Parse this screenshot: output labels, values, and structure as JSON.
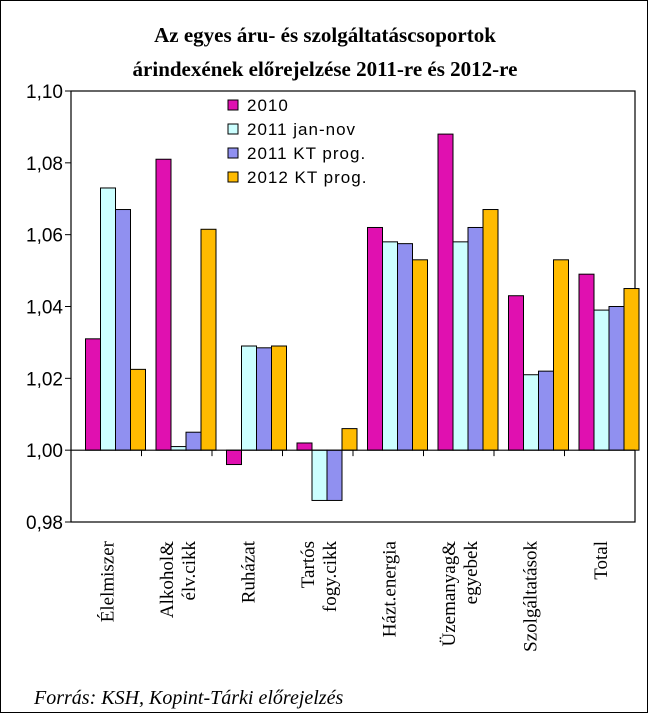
{
  "chart_data": {
    "type": "bar",
    "title_lines": [
      "Az egyes áru- és szolgáltatáscsoportok",
      "árindexének előrejelzése 2011-re és 2012-re"
    ],
    "categories": [
      [
        "Élelmiszer"
      ],
      [
        "Alkohol&",
        "élv.cikk"
      ],
      [
        "Ruházat"
      ],
      [
        "Tartós",
        "fogy.cikk"
      ],
      [
        "Házt.energia"
      ],
      [
        "Üzemanyag&",
        "egyebek"
      ],
      [
        "Szolgáltatások"
      ],
      [
        "Total"
      ]
    ],
    "series": [
      {
        "name": "2010",
        "color": "#e010b0",
        "values": [
          1.031,
          1.081,
          0.996,
          1.002,
          1.062,
          1.088,
          1.043,
          1.049
        ]
      },
      {
        "name": "2011 jan-nov",
        "color": "#ccffff",
        "values": [
          1.073,
          1.001,
          1.029,
          0.986,
          1.058,
          1.058,
          1.021,
          1.039
        ]
      },
      {
        "name": "2011 KT prog.",
        "color": "#9090f0",
        "values": [
          1.067,
          1.005,
          1.0285,
          0.986,
          1.0575,
          1.062,
          1.022,
          1.04
        ]
      },
      {
        "name": "2012 KT prog.",
        "color": "#ffbb00",
        "values": [
          1.0225,
          1.0615,
          1.029,
          1.006,
          1.053,
          1.067,
          1.053,
          1.045
        ]
      }
    ],
    "ylim": [
      0.98,
      1.1
    ],
    "yticks": [
      "0,98",
      "1,00",
      "1,02",
      "1,04",
      "1,06",
      "1,08",
      "1,10"
    ],
    "ytick_values": [
      0.98,
      1.0,
      1.02,
      1.04,
      1.06,
      1.08,
      1.1
    ],
    "legend_position": "top-center",
    "grid": false
  },
  "source_note": "Forrás: KSH, Kopint-Tárki előrejelzés"
}
